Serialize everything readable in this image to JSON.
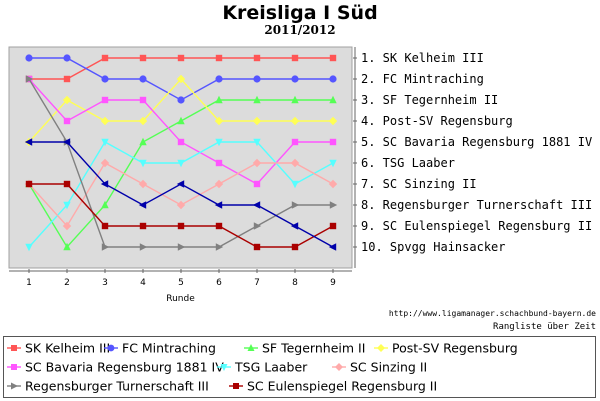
{
  "chart_data": {
    "type": "line",
    "title": "Kreisliga I Süd",
    "subtitle": "2011/2012",
    "xlabel": "Runde",
    "x": [
      1,
      2,
      3,
      4,
      5,
      6,
      7,
      8,
      9
    ],
    "ylim": [
      1,
      10
    ],
    "y_inverted": true,
    "grid": false,
    "legend_position": "bottom",
    "ranking_labels": [
      "1. SK Kelheim III",
      "2. FC Mintraching",
      "3. SF Tegernheim II",
      "4. Post-SV Regensburg",
      "5. SC Bavaria Regensburg 1881 IV",
      "6. TSG Laaber",
      "7. SC Sinzing II",
      "8. Regensburger Turnerschaft III",
      "9. SC Eulenspiegel Regensburg II",
      "10. Spvgg Hainsacker"
    ],
    "series": [
      {
        "name": "SK Kelheim III",
        "color": "#ff5555",
        "marker": "square",
        "values": [
          2,
          2,
          1,
          1,
          1,
          1,
          1,
          1,
          1
        ]
      },
      {
        "name": "FC Mintraching",
        "color": "#5555ff",
        "marker": "circle",
        "values": [
          1,
          1,
          2,
          2,
          3,
          2,
          2,
          2,
          2
        ]
      },
      {
        "name": "SF Tegernheim II",
        "color": "#55ff55",
        "marker": "triangle-up",
        "values": [
          7,
          10,
          8,
          5,
          4,
          3,
          3,
          3,
          3
        ]
      },
      {
        "name": "Post-SV Regensburg",
        "color": "#ffff55",
        "marker": "diamond",
        "values": [
          5,
          3,
          4,
          4,
          2,
          4,
          4,
          4,
          4
        ]
      },
      {
        "name": "SC Bavaria Regensburg 1881 IV",
        "color": "#ff55ff",
        "marker": "square",
        "values": [
          2,
          4,
          3,
          3,
          5,
          6,
          7,
          5,
          5
        ]
      },
      {
        "name": "TSG Laaber",
        "color": "#55ffff",
        "marker": "triangle-down",
        "values": [
          10,
          8,
          5,
          6,
          6,
          5,
          5,
          7,
          6
        ]
      },
      {
        "name": "SC Sinzing II",
        "color": "#ffaaaa",
        "marker": "diamond",
        "values": [
          7,
          9,
          6,
          7,
          8,
          7,
          6,
          6,
          7
        ]
      },
      {
        "name": "Regensburger Turnerschaft III",
        "color": "#808080",
        "marker": "triangle-right",
        "values": [
          2,
          5,
          10,
          10,
          10,
          10,
          9,
          8,
          8
        ]
      },
      {
        "name": "SC Eulenspiegel Regensburg II",
        "color": "#aa0000",
        "marker": "square",
        "values": [
          7,
          7,
          9,
          9,
          9,
          9,
          10,
          10,
          9
        ]
      },
      {
        "name": "Spvgg Hainsacker",
        "color": "#0000aa",
        "marker": "triangle-left",
        "values": [
          5,
          5,
          7,
          8,
          7,
          8,
          8,
          9,
          10
        ]
      }
    ]
  },
  "footer": {
    "source": "http://www.ligamanager.schachbund-bayern.de",
    "caption": "Rangliste über Zeit"
  }
}
